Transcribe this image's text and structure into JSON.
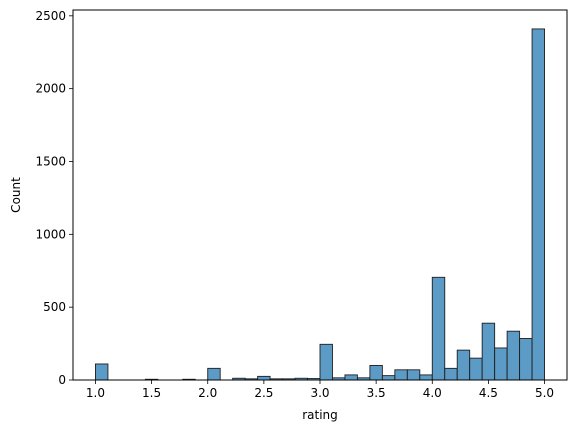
{
  "chart_data": {
    "type": "bar",
    "title": "",
    "xlabel": "rating",
    "ylabel": "Count",
    "xlim": [
      0.8,
      5.2
    ],
    "ylim": [
      0,
      2540
    ],
    "bin_width": 0.1111,
    "bins_start": [
      1.0,
      1.1111,
      1.2222,
      1.3333,
      1.4444,
      1.5556,
      1.6667,
      1.7778,
      1.8889,
      2.0,
      2.1111,
      2.2222,
      2.3333,
      2.4444,
      2.5556,
      2.6667,
      2.7778,
      2.8889,
      3.0,
      3.1111,
      3.2222,
      3.3333,
      3.4444,
      3.5556,
      3.6667,
      3.7778,
      3.8889,
      4.0,
      4.1111,
      4.2222,
      4.3333,
      4.4444,
      4.5556,
      4.6667,
      4.7778,
      4.8889
    ],
    "values": [
      110,
      0,
      0,
      0,
      5,
      0,
      0,
      5,
      0,
      80,
      0,
      12,
      8,
      25,
      8,
      8,
      12,
      10,
      245,
      15,
      35,
      15,
      100,
      30,
      70,
      70,
      35,
      705,
      80,
      205,
      150,
      390,
      220,
      335,
      285,
      2410
    ],
    "x_ticks": [
      1.0,
      1.5,
      2.0,
      2.5,
      3.0,
      3.5,
      4.0,
      4.5,
      5.0
    ],
    "x_tick_labels": [
      "1.0",
      "1.5",
      "2.0",
      "2.5",
      "3.0",
      "3.5",
      "4.0",
      "4.5",
      "5.0"
    ],
    "y_ticks": [
      0,
      500,
      1000,
      1500,
      2000,
      2500
    ],
    "y_tick_labels": [
      "0",
      "500",
      "1000",
      "1500",
      "2000",
      "2500"
    ],
    "grid": false,
    "colors": {
      "bar_fill": "#5b9bc6",
      "bar_edge": "#1f1f1f",
      "axis": "#000000"
    }
  }
}
